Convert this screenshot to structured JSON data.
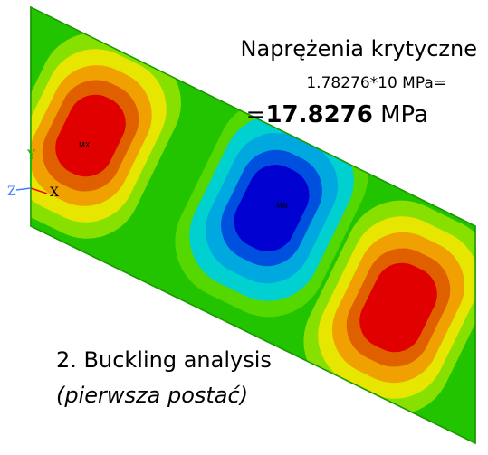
{
  "title": "Naprężenia krytyczne",
  "stress": {
    "line1": "1.78276*10 MPa=",
    "prefix": "=",
    "value": "17.8276",
    "unit": " MPa"
  },
  "analysis": {
    "label": "2. Buckling analysis",
    "mode": "(pierwsza postać)"
  },
  "markers": {
    "max_left": "MX",
    "min_center": "MN"
  },
  "axes": {
    "x": "X",
    "y": "Y",
    "z": "Z"
  },
  "colors": {
    "plate_green": "#22c400",
    "light_green": "#88e000",
    "yellow": "#e6e600",
    "orange": "#f0a000",
    "dark_orange": "#e06000",
    "red": "#e00000",
    "cyan": "#00d0d0",
    "light_blue": "#00a8e0",
    "blue": "#0050e0",
    "dark_blue": "#0000d0",
    "axis_x": "#ff0000",
    "axis_y": "#00c000",
    "axis_z": "#4080ff"
  },
  "contour_icon": "buckling-mode-contour"
}
